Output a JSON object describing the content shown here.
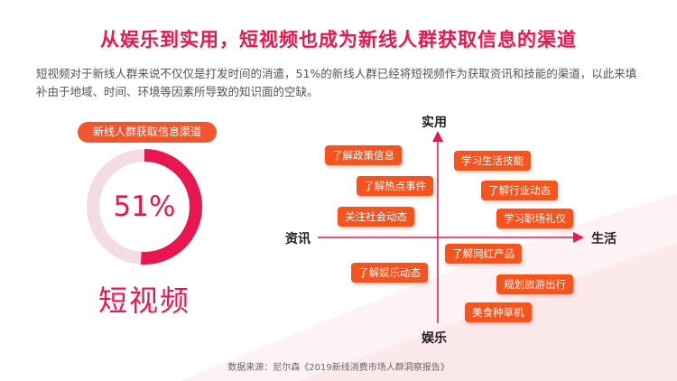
{
  "title": "从娱乐到实用，短视频也成为新线人群获取信息的渠道",
  "intro": "短视频对于新线人群来说不仅仅是打发时间的消遣，51%的新线人群已经将短视频作为获取资讯和技能的渠道，以此来填补由于地域、时间、环境等因素所导致的知识面的空缺。",
  "stat": {
    "badge": "新线人群获取信息渠道",
    "value_label": "51%",
    "value_fraction": 0.51,
    "caption": "短视频"
  },
  "quadrant": {
    "axis_top": "实用",
    "axis_bottom": "娱乐",
    "axis_left": "资讯",
    "axis_right": "生活",
    "tags": [
      "了解政策信息",
      "了解热点事件",
      "关注社会动态",
      "了解娱乐动态",
      "学习生活技能",
      "了解行业动态",
      "学习职场礼仪",
      "了解网红产品",
      "规划旅游出行",
      "美食种草机"
    ]
  },
  "source": "数据来源：尼尔森《2019新线消费市场人群洞察报告》",
  "colors": {
    "accent": "#e8174f",
    "tag": "#f6541f",
    "ring_track": "#f3dde2"
  }
}
